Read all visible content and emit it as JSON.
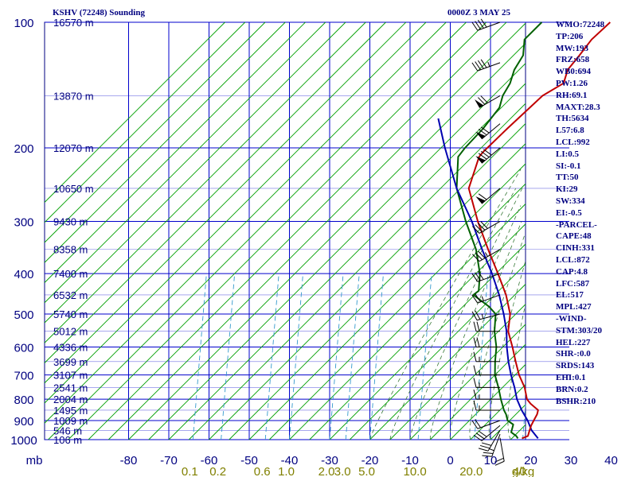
{
  "header": {
    "station": "KSHV (72248) Sounding",
    "datetime": "0000Z  3 MAY 25"
  },
  "indices": [
    "WMO:72248",
    "TP:206",
    "MW:193",
    "FRZ:658",
    "WB0:694",
    "PW:1.26",
    "RH:69.1",
    "MAXT:28.3",
    "TH:5634",
    "L57:6.8",
    "LCL:992",
    "LI:0.5",
    "SI:-0.1",
    "TT:50",
    "KI:29",
    "SW:334",
    "EI:-0.5",
    "-PARCEL-",
    "CAPE:48",
    "CINH:331",
    "LCL:872",
    "CAP:4.8",
    "LFC:587",
    "EL:517",
    "MPL:427",
    "-WIND-",
    "STM:303/20",
    "HEL:227",
    "SHR-:0.0",
    "SRDS:143",
    "EHI:0.1",
    "BRN:0.2",
    "BSHR:210"
  ],
  "colors": {
    "frame": "#000080",
    "grid": "#0000cc",
    "isotherm": "#00a000",
    "temperature": "#c00000",
    "dewpoint": "#006000",
    "parcel": "#0000b0",
    "moist_adiabat": "#3a7a3a",
    "mixing_ratio": "#3399cc",
    "mixing_labels": "#808000",
    "wind": "#000000"
  },
  "chart_data": {
    "type": "skew-t",
    "pressure_label": "mb",
    "pressure_ticks": [
      100,
      200,
      300,
      400,
      500,
      600,
      700,
      800,
      900,
      1000
    ],
    "temperature_ticks": [
      -80,
      -70,
      -60,
      -50,
      -40,
      -30,
      -20,
      -10,
      0,
      10,
      20,
      30,
      40
    ],
    "temperature_range": [
      -80,
      40
    ],
    "pressure_range": [
      1000,
      100
    ],
    "mixing_ratio_label": "g/kg",
    "mixing_ratio_values": [
      "0.1",
      "0.2",
      "0.6",
      "1.0",
      "2.0",
      "3.0",
      "5.0",
      "10.0",
      "20.0",
      "40"
    ],
    "height_labels": [
      {
        "pressure": 100,
        "text": "16570 m"
      },
      {
        "pressure": 150,
        "text": "13870 m"
      },
      {
        "pressure": 200,
        "text": "12070 m"
      },
      {
        "pressure": 250,
        "text": "10650 m"
      },
      {
        "pressure": 300,
        "text": "9430 m"
      },
      {
        "pressure": 350,
        "text": "8358 m"
      },
      {
        "pressure": 400,
        "text": "7400 m"
      },
      {
        "pressure": 450,
        "text": "6532 m"
      },
      {
        "pressure": 500,
        "text": "5740 m"
      },
      {
        "pressure": 550,
        "text": "5012 m"
      },
      {
        "pressure": 600,
        "text": "4336 m"
      },
      {
        "pressure": 650,
        "text": "3699 m"
      },
      {
        "pressure": 700,
        "text": "3107 m"
      },
      {
        "pressure": 750,
        "text": "2541 m"
      },
      {
        "pressure": 800,
        "text": "2004 m"
      },
      {
        "pressure": 850,
        "text": "1495 m"
      },
      {
        "pressure": 900,
        "text": "1009 m"
      },
      {
        "pressure": 950,
        "text": "546 m"
      },
      {
        "pressure": 1000,
        "text": "106 m"
      }
    ],
    "temperature_profile": [
      {
        "p": 993,
        "t": 17.5
      },
      {
        "p": 980,
        "t": 18.4
      },
      {
        "p": 950,
        "t": 17.4
      },
      {
        "p": 925,
        "t": 16.6
      },
      {
        "p": 900,
        "t": 16.0
      },
      {
        "p": 870,
        "t": 15.3
      },
      {
        "p": 850,
        "t": 14.5
      },
      {
        "p": 820,
        "t": 11.0
      },
      {
        "p": 800,
        "t": 9.0
      },
      {
        "p": 750,
        "t": 5.5
      },
      {
        "p": 700,
        "t": 1.0
      },
      {
        "p": 650,
        "t": -3.2
      },
      {
        "p": 600,
        "t": -7.6
      },
      {
        "p": 550,
        "t": -12.6
      },
      {
        "p": 500,
        "t": -16.4
      },
      {
        "p": 450,
        "t": -22.2
      },
      {
        "p": 400,
        "t": -29.5
      },
      {
        "p": 350,
        "t": -38.0
      },
      {
        "p": 300,
        "t": -47.5
      },
      {
        "p": 250,
        "t": -58.0
      },
      {
        "p": 210,
        "t": -63.3
      },
      {
        "p": 205,
        "t": -63.5
      },
      {
        "p": 180,
        "t": -63.3
      },
      {
        "p": 150,
        "t": -62.7
      },
      {
        "p": 140,
        "t": -60.6
      },
      {
        "p": 130,
        "t": -62.9
      },
      {
        "p": 120,
        "t": -63.6
      },
      {
        "p": 110,
        "t": -64.5
      },
      {
        "p": 100,
        "t": -64.2
      }
    ],
    "dewpoint_profile": [
      {
        "p": 993,
        "td": 16.5
      },
      {
        "p": 980,
        "td": 15.5
      },
      {
        "p": 960,
        "td": 13.3
      },
      {
        "p": 920,
        "td": 11.9
      },
      {
        "p": 900,
        "td": 9.5
      },
      {
        "p": 870,
        "td": 7.6
      },
      {
        "p": 850,
        "td": 6.0
      },
      {
        "p": 800,
        "td": 2.5
      },
      {
        "p": 750,
        "td": -1.0
      },
      {
        "p": 700,
        "td": -5.0
      },
      {
        "p": 650,
        "td": -8.3
      },
      {
        "p": 600,
        "td": -11.6
      },
      {
        "p": 550,
        "td": -16.0
      },
      {
        "p": 500,
        "td": -20.0
      },
      {
        "p": 480,
        "td": -23.5
      },
      {
        "p": 450,
        "td": -30.3
      },
      {
        "p": 440,
        "td": -30.0
      },
      {
        "p": 400,
        "td": -34.0
      },
      {
        "p": 350,
        "td": -41.0
      },
      {
        "p": 300,
        "td": -50.5
      },
      {
        "p": 250,
        "td": -61.0
      },
      {
        "p": 210,
        "td": -68.5
      },
      {
        "p": 200,
        "td": -69.0
      },
      {
        "p": 180,
        "td": -69.3
      },
      {
        "p": 160,
        "td": -70.5
      },
      {
        "p": 150,
        "td": -72.6
      },
      {
        "p": 140,
        "td": -73.9
      },
      {
        "p": 130,
        "td": -76.2
      },
      {
        "p": 120,
        "td": -77.6
      },
      {
        "p": 110,
        "td": -81.2
      },
      {
        "p": 100,
        "td": -81.2
      }
    ],
    "parcel_profile": [
      {
        "p": 993,
        "t": 21.5
      },
      {
        "p": 950,
        "t": 17.9
      },
      {
        "p": 900,
        "t": 14.5
      },
      {
        "p": 850,
        "t": 10.4
      },
      {
        "p": 800,
        "t": 6.5
      },
      {
        "p": 750,
        "t": 3.0
      },
      {
        "p": 700,
        "t": -1.0
      },
      {
        "p": 650,
        "t": -5.0
      },
      {
        "p": 600,
        "t": -9.0
      },
      {
        "p": 550,
        "t": -13.0
      },
      {
        "p": 500,
        "t": -18.0
      },
      {
        "p": 450,
        "t": -23.9
      },
      {
        "p": 400,
        "t": -31.0
      },
      {
        "p": 350,
        "t": -39.5
      },
      {
        "p": 300,
        "t": -49.0
      },
      {
        "p": 250,
        "t": -61.0
      },
      {
        "p": 200,
        "t": -74.0
      },
      {
        "p": 170,
        "t": -83.0
      }
    ],
    "wind_barbs": [
      {
        "p": 990,
        "dir": 170,
        "spd": 20
      },
      {
        "p": 970,
        "dir": 200,
        "spd": 25
      },
      {
        "p": 950,
        "dir": 210,
        "spd": 30
      },
      {
        "p": 925,
        "dir": 230,
        "spd": 30
      },
      {
        "p": 900,
        "dir": 250,
        "spd": 20
      },
      {
        "p": 850,
        "dir": 270,
        "spd": 15
      },
      {
        "p": 800,
        "dir": 270,
        "spd": 15
      },
      {
        "p": 750,
        "dir": 270,
        "spd": 15
      },
      {
        "p": 700,
        "dir": 270,
        "spd": 15
      },
      {
        "p": 650,
        "dir": 270,
        "spd": 15
      },
      {
        "p": 600,
        "dir": 270,
        "spd": 20
      },
      {
        "p": 550,
        "dir": 270,
        "spd": 20
      },
      {
        "p": 500,
        "dir": 255,
        "spd": 25
      },
      {
        "p": 450,
        "dir": 250,
        "spd": 25
      },
      {
        "p": 400,
        "dir": 250,
        "spd": 30
      },
      {
        "p": 350,
        "dir": 240,
        "spd": 35
      },
      {
        "p": 300,
        "dir": 240,
        "spd": 40
      },
      {
        "p": 250,
        "dir": 230,
        "spd": 60
      },
      {
        "p": 200,
        "dir": 230,
        "spd": 80
      },
      {
        "p": 175,
        "dir": 230,
        "spd": 70
      },
      {
        "p": 150,
        "dir": 240,
        "spd": 70
      },
      {
        "p": 125,
        "dir": 250,
        "spd": 45
      },
      {
        "p": 100,
        "dir": 250,
        "spd": 40
      }
    ]
  }
}
